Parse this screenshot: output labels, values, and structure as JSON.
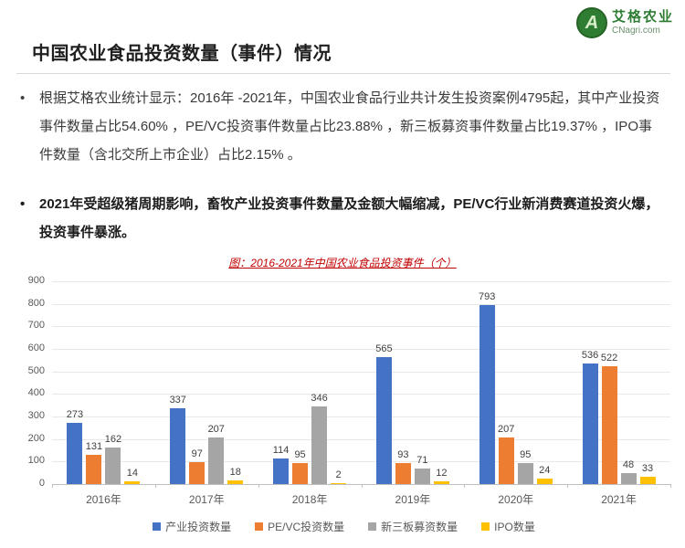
{
  "brand": {
    "name_cn": "艾格农业",
    "site": "CNagri.com",
    "logo_letter": "A"
  },
  "header": {
    "title": "中国农业食品投资数量（事件）情况"
  },
  "bullets": {
    "marker": "•",
    "items": [
      {
        "text": "根据艾格农业统计显示：2016年 -2021年，中国农业食品行业共计发生投资案例4795起，其中产业投资事件数量占比54.60% ，PE/VC投资事件数量占比23.88% ，新三板募资事件数量占比19.37% ，IPO事件数量（含北交所上市企业）占比2.15% 。"
      },
      {
        "text": "2021年受超级猪周期影响，畜牧产业投资事件数量及金额大幅缩减，PE/VC行业新消费赛道投资火爆，投资事件暴涨。"
      }
    ]
  },
  "chart_data": {
    "type": "bar",
    "title": "图：2016-2021年中国农业食品投资事件（个）",
    "categories": [
      "2016年",
      "2017年",
      "2018年",
      "2019年",
      "2020年",
      "2021年"
    ],
    "series": [
      {
        "name": "产业投资数量",
        "color": "#4472C4",
        "values": [
          273,
          337,
          114,
          565,
          793,
          536
        ]
      },
      {
        "name": "PE/VC投资数量",
        "color": "#ED7D31",
        "values": [
          131,
          97,
          95,
          93,
          207,
          522
        ]
      },
      {
        "name": "新三板募资数量",
        "color": "#A5A5A5",
        "values": [
          162,
          207,
          346,
          71,
          95,
          48
        ]
      },
      {
        "name": "IPO数量",
        "color": "#FFC000",
        "values": [
          14,
          18,
          2,
          12,
          24,
          33
        ]
      }
    ],
    "ylim": [
      0,
      900
    ],
    "ytick_interval": 100,
    "grid": true,
    "legend_position": "bottom",
    "xlabel": "",
    "ylabel": ""
  }
}
